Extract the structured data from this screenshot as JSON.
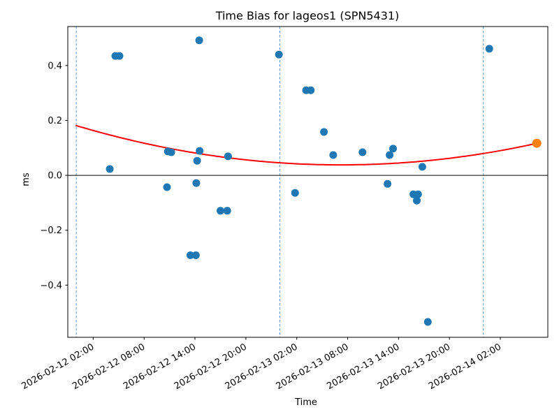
{
  "figure": {
    "title": "Time Bias for lageos1 (SPN5431)",
    "xlabel": "Time",
    "ylabel": "ms"
  },
  "colors": {
    "scatter_blue": "#1f77b4",
    "scatter_orange": "#ff7f0e",
    "trend_red": "#ff0000",
    "day_gridline_blue": "#5795c4",
    "axis_black": "#000000",
    "background": "#ffffff"
  },
  "chart_data": {
    "type": "scatter",
    "title": "Time Bias for lageos1 (SPN5431)",
    "xlabel": "Time",
    "ylabel": "ms",
    "x_unit": "hours since 2026-02-12 00:00",
    "xlim_hours": [
      -1.0,
      55.6
    ],
    "ylim": [
      -0.59,
      0.542
    ],
    "grid": "vertical day lines only, dashed",
    "legend": "none",
    "x_ticks": [
      {
        "hour": 2,
        "label": "2026-02-12 02:00"
      },
      {
        "hour": 8,
        "label": "2026-02-12 08:00"
      },
      {
        "hour": 14,
        "label": "2026-02-12 14:00"
      },
      {
        "hour": 20,
        "label": "2026-02-12 20:00"
      },
      {
        "hour": 26,
        "label": "2026-02-13 02:00"
      },
      {
        "hour": 32,
        "label": "2026-02-13 08:00"
      },
      {
        "hour": 38,
        "label": "2026-02-13 14:00"
      },
      {
        "hour": 44,
        "label": "2026-02-13 20:00"
      },
      {
        "hour": 50,
        "label": "2026-02-14 02:00"
      }
    ],
    "y_ticks": [
      {
        "value": 0.4,
        "label": "0.4"
      },
      {
        "value": 0.2,
        "label": "0.2"
      },
      {
        "value": 0.0,
        "label": "0.0"
      },
      {
        "value": -0.2,
        "label": "−0.2"
      },
      {
        "value": -0.4,
        "label": "−0.4"
      }
    ],
    "day_gridlines_hours": [
      0,
      24,
      48
    ],
    "zero_line_value": 0.0,
    "series": [
      {
        "name": "blue-observations",
        "color": "#1f77b4",
        "marker_radius": 5.5,
        "points_hv": [
          [
            3.95,
            0.023
          ],
          [
            4.6,
            0.435
          ],
          [
            5.1,
            0.435
          ],
          [
            10.7,
            -0.043
          ],
          [
            10.8,
            0.087
          ],
          [
            11.2,
            0.084
          ],
          [
            13.45,
            -0.291
          ],
          [
            14.1,
            -0.291
          ],
          [
            14.15,
            -0.028
          ],
          [
            14.25,
            0.053
          ],
          [
            14.5,
            0.492
          ],
          [
            14.55,
            0.089
          ],
          [
            17.0,
            -0.129
          ],
          [
            17.8,
            -0.129
          ],
          [
            17.9,
            0.069
          ],
          [
            23.9,
            0.44
          ],
          [
            25.8,
            -0.064
          ],
          [
            27.1,
            0.31
          ],
          [
            27.65,
            0.31
          ],
          [
            29.2,
            0.158
          ],
          [
            30.3,
            0.074
          ],
          [
            33.75,
            0.084
          ],
          [
            36.7,
            -0.031
          ],
          [
            36.95,
            0.074
          ],
          [
            37.35,
            0.097
          ],
          [
            39.75,
            -0.069
          ],
          [
            40.3,
            -0.069
          ],
          [
            40.15,
            -0.092
          ],
          [
            40.8,
            0.031
          ],
          [
            41.45,
            -0.534
          ],
          [
            48.7,
            0.461
          ]
        ]
      },
      {
        "name": "orange-latest-point",
        "color": "#ff7f0e",
        "marker_radius": 6.5,
        "points_hv": [
          [
            54.3,
            0.117
          ]
        ]
      }
    ],
    "trend": {
      "type": "quadratic",
      "color": "#ff0000",
      "line_width": 2,
      "a_per_hour2": 0.000147,
      "h_at_min": 31.2,
      "v_min": 0.038,
      "h_domain": [
        0,
        54.3
      ],
      "v_at_start": 0.181,
      "v_at_end": 0.117
    }
  }
}
